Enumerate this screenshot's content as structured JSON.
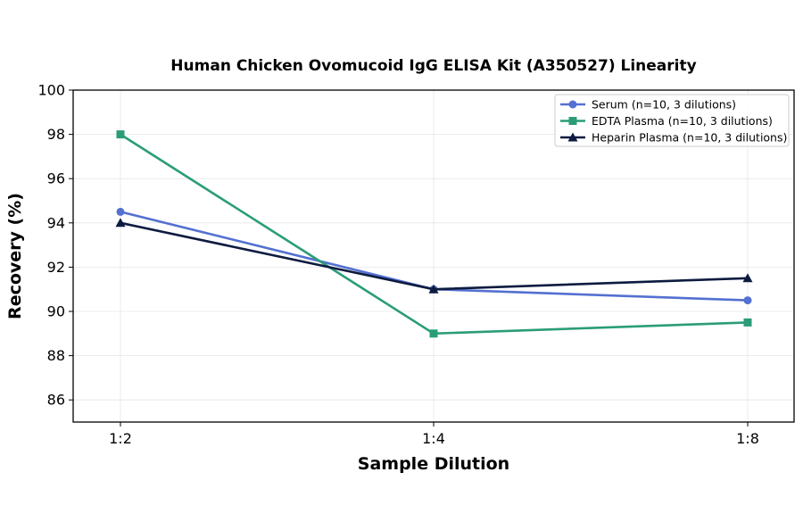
{
  "chart_data": {
    "type": "line",
    "title": "Human Chicken Ovomucoid IgG ELISA Kit (A350527) Linearity",
    "xlabel": "Sample Dilution",
    "ylabel": "Recovery (%)",
    "categories": [
      "1:2",
      "1:4",
      "1:8"
    ],
    "ylim": [
      85,
      100
    ],
    "yticks": [
      86,
      88,
      90,
      92,
      94,
      96,
      98,
      100
    ],
    "grid": true,
    "legend_position": "top-right",
    "series": [
      {
        "name": "Serum (n=10, 3 dilutions)",
        "values": [
          94.5,
          91.0,
          90.5
        ],
        "color": "#5470d0",
        "marker": "circle"
      },
      {
        "name": "EDTA Plasma (n=10, 3 dilutions)",
        "values": [
          98.0,
          89.0,
          89.5
        ],
        "color": "#2a9d78",
        "marker": "square"
      },
      {
        "name": "Heparin Plasma (n=10, 3 dilutions)",
        "values": [
          94.0,
          91.0,
          91.5
        ],
        "color": "#0d1b40",
        "marker": "triangle"
      }
    ]
  }
}
